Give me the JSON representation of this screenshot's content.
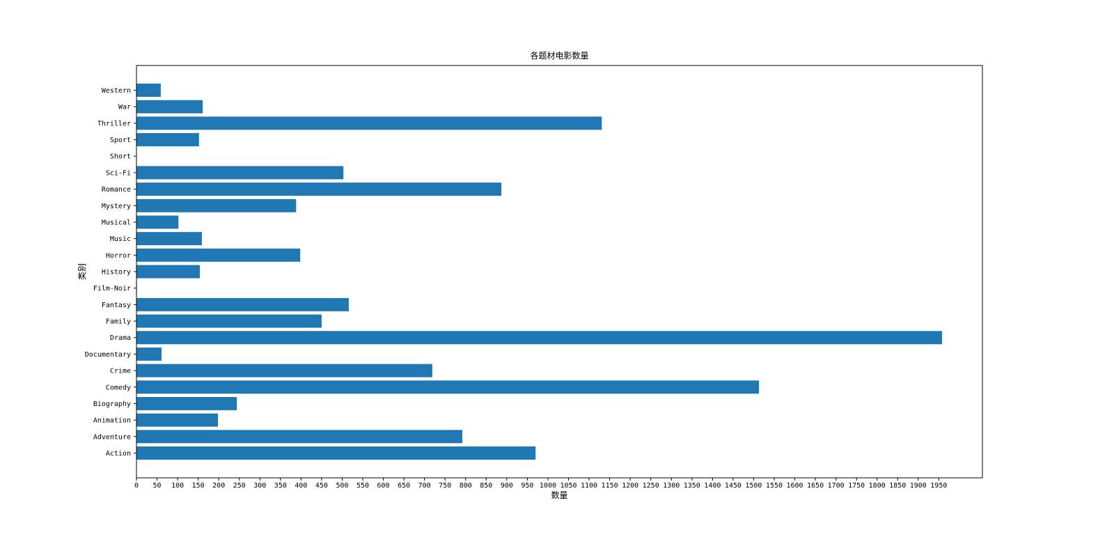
{
  "chart_data": {
    "type": "barh",
    "title": "各题材电影数量",
    "x_label": "数量",
    "y_label": "类别",
    "categories": [
      "Action",
      "Adventure",
      "Animation",
      "Biography",
      "Comedy",
      "Crime",
      "Documentary",
      "Drama",
      "Family",
      "Fantasy",
      "Film-Noir",
      "History",
      "Horror",
      "Music",
      "Musical",
      "Mystery",
      "Romance",
      "Sci-Fi",
      "Short",
      "Sport",
      "Thriller",
      "War",
      "Western"
    ],
    "values": [
      970,
      792,
      198,
      244,
      1513,
      719,
      61,
      1958,
      450,
      516,
      1,
      154,
      398,
      159,
      102,
      388,
      887,
      503,
      0,
      152,
      1131,
      161,
      59
    ],
    "color": "#1f77b4",
    "xlim": [
      0,
      2056
    ],
    "xticks": [
      0,
      50,
      100,
      150,
      200,
      250,
      300,
      350,
      400,
      450,
      500,
      550,
      600,
      650,
      700,
      750,
      800,
      850,
      900,
      950,
      1000,
      1050,
      1100,
      1150,
      1200,
      1250,
      1300,
      1350,
      1400,
      1450,
      1500,
      1550,
      1600,
      1650,
      1700,
      1750,
      1800,
      1850,
      1900,
      1950
    ]
  }
}
